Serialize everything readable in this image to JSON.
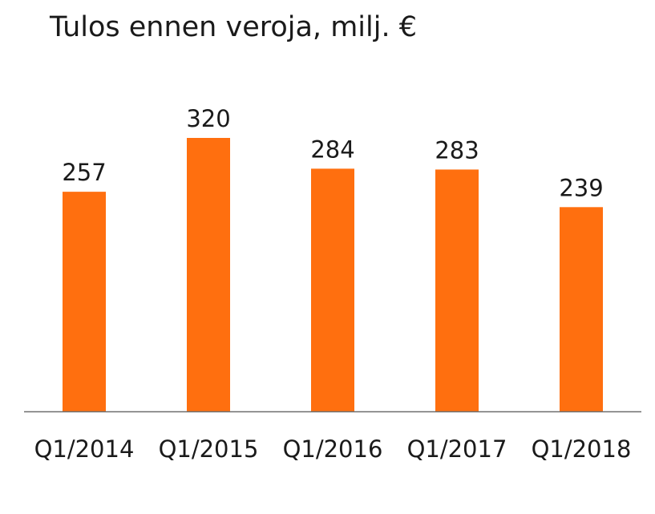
{
  "chart_data": {
    "type": "bar",
    "title": "Tulos ennen veroja, milj. €",
    "categories": [
      "Q1/2014",
      "Q1/2015",
      "Q1/2016",
      "Q1/2017",
      "Q1/2018"
    ],
    "values": [
      257,
      320,
      284,
      283,
      239
    ],
    "data_labels": [
      "257",
      "320",
      "284",
      "283",
      "239"
    ],
    "xlabel": "",
    "ylabel": "",
    "ylim": [
      0,
      320
    ],
    "grid": false,
    "legend": "none",
    "bar_color": "#ff6f0f",
    "axis_color": "#6e6e6e"
  }
}
